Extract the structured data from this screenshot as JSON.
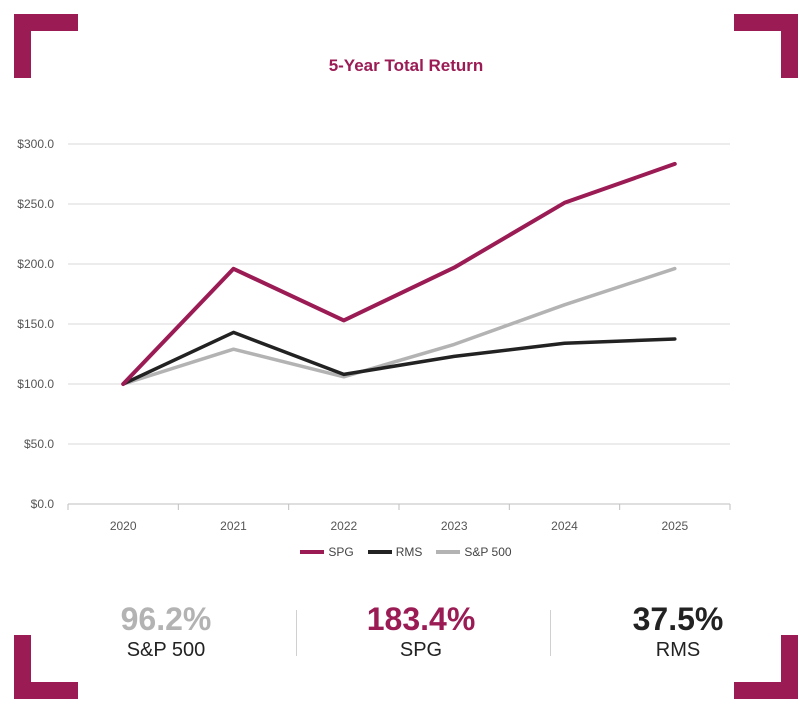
{
  "colors": {
    "accent": "#9b1b55",
    "spg": "#9b1b55",
    "rms": "#222222",
    "sp500": "#b3b3b3",
    "grid": "#d9d9d9"
  },
  "chart_data": {
    "type": "line",
    "title": "5-Year Total Return",
    "categories": [
      "2020",
      "2021",
      "2022",
      "2023",
      "2024",
      "2025"
    ],
    "series": [
      {
        "name": "SPG",
        "values": [
          100,
          196,
          153,
          197,
          251,
          283.4
        ]
      },
      {
        "name": "RMS",
        "values": [
          100,
          143,
          108,
          123,
          134,
          137.5
        ]
      },
      {
        "name": "S&P 500",
        "values": [
          100,
          129,
          106,
          133,
          166,
          196.2
        ]
      }
    ],
    "yticks": [
      "$0.0",
      "$50.0",
      "$100.0",
      "$150.0",
      "$200.0",
      "$250.0",
      "$300.0"
    ],
    "ylim": [
      0,
      300
    ],
    "xlabel": "",
    "ylabel": "",
    "grid": true,
    "legend": "bottom-center"
  },
  "legend": [
    {
      "label": "SPG"
    },
    {
      "label": "RMS"
    },
    {
      "label": "S&P 500"
    }
  ],
  "stats": [
    {
      "value": "96.2%",
      "label": "S&P 500"
    },
    {
      "value": "183.4%",
      "label": "SPG"
    },
    {
      "value": "37.5%",
      "label": "RMS"
    }
  ]
}
